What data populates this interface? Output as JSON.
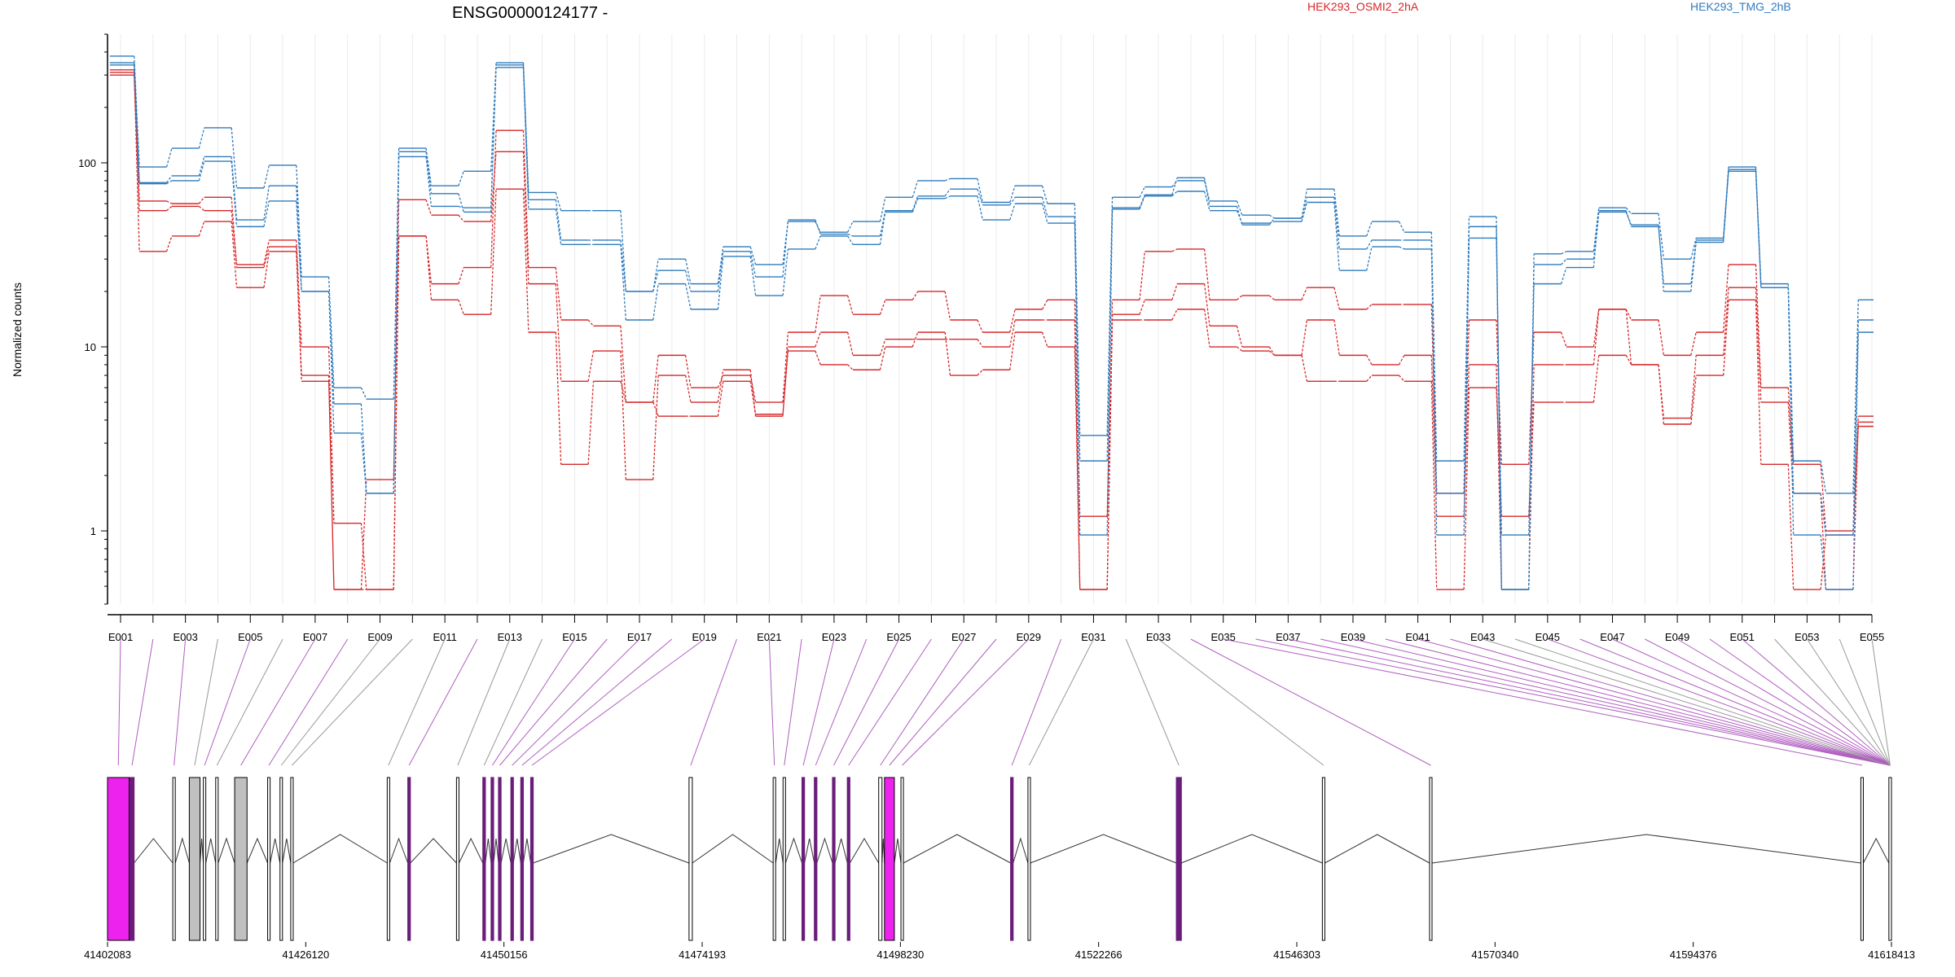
{
  "chart_data": {
    "type": "line",
    "title": "ENSG00000124177 -",
    "ylabel": "Normalized counts",
    "yscale": "log",
    "ylim": [
      0.4,
      500
    ],
    "yticks": [
      "1",
      "10",
      "100"
    ],
    "yticks_values": [
      1,
      10,
      100
    ],
    "grid": true,
    "legend": [
      "HEK293_OSMI2_2hA",
      "HEK293_TMG_2hB"
    ],
    "legend_placement": "top",
    "colors": {
      "OSMI2": "#d62728",
      "TMG": "#2f7bbd",
      "gene_model_exon": "#ee22ee",
      "gene_model_neutral": "#c0c0c0",
      "link_sig": "#b05ec0",
      "link_nonsig": "#999999"
    },
    "exons": [
      "E001",
      "E002",
      "E003",
      "E004",
      "E005",
      "E006",
      "E007",
      "E008",
      "E009",
      "E010",
      "E011",
      "E012",
      "E013",
      "E014",
      "E015",
      "E016",
      "E017",
      "E018",
      "E019",
      "E020",
      "E021",
      "E022",
      "E023",
      "E024",
      "E025",
      "E026",
      "E027",
      "E028",
      "E029",
      "E030",
      "E031",
      "E032",
      "E033",
      "E034",
      "E035",
      "E036",
      "E037",
      "E038",
      "E039",
      "E040",
      "E041",
      "E042",
      "E043",
      "E044",
      "E045",
      "E046",
      "E047",
      "E048",
      "E049",
      "E050",
      "E051",
      "E052",
      "E053",
      "E054",
      "E055"
    ],
    "xtick_labels": [
      "E001",
      "E003",
      "E005",
      "E007",
      "E009",
      "E011",
      "E013",
      "E015",
      "E017",
      "E019",
      "E021",
      "E023",
      "E025",
      "E027",
      "E029",
      "E031",
      "E033",
      "E035",
      "E037",
      "E039",
      "E041",
      "E043",
      "E045",
      "E047",
      "E049",
      "E051",
      "E053",
      "E055"
    ],
    "series": [
      {
        "name": "HEK293_OSMI2_2hA",
        "group": "OSMI2",
        "values": [
          320,
          55,
          58,
          55,
          28,
          38,
          10,
          1.1,
          0.48,
          40,
          22,
          27,
          150,
          27,
          14,
          13,
          5,
          9,
          6,
          7,
          5,
          12,
          19,
          15,
          18,
          20,
          14,
          12,
          16,
          18,
          1.2,
          18,
          33,
          34,
          18,
          19,
          18,
          21,
          16,
          17,
          17,
          1.6,
          14,
          2.3,
          12,
          10,
          16,
          14,
          9,
          12,
          28,
          6,
          2.3,
          1.0,
          4.2
        ]
      },
      {
        "name": "HEK293_OSMI2_2hA",
        "group": "OSMI2",
        "values": [
          300,
          62,
          60,
          65,
          27,
          35,
          6.5,
          0.48,
          1.9,
          63,
          52,
          48,
          115,
          22,
          6.5,
          9.5,
          1.9,
          7,
          5,
          7.5,
          4.2,
          10,
          12,
          9,
          11,
          11,
          11,
          10,
          14,
          14,
          0.48,
          15,
          18,
          22,
          13,
          10,
          9,
          14,
          9,
          8,
          9,
          1.2,
          8,
          0.48,
          8,
          8,
          16,
          8,
          4.1,
          9,
          21,
          5,
          1.6,
          0.48,
          3.9
        ]
      },
      {
        "name": "HEK293_OSMI2_2hA",
        "group": "OSMI2",
        "values": [
          310,
          33,
          40,
          48,
          21,
          33,
          7,
          0.48,
          0.48,
          40,
          18,
          15,
          72,
          12,
          2.3,
          6.5,
          5.0,
          4.2,
          4.2,
          6.5,
          4.3,
          9.5,
          8,
          7.5,
          10,
          12,
          7,
          7.5,
          12,
          10,
          0.48,
          14,
          14,
          16,
          10,
          9.5,
          9,
          6.5,
          6.5,
          7,
          6.5,
          0.48,
          6,
          1.2,
          5,
          5,
          9,
          8,
          3.8,
          7,
          18,
          2.3,
          0.48,
          0.95,
          3.7
        ]
      },
      {
        "name": "HEK293_TMG_2hB",
        "group": "TMG",
        "values": [
          380,
          95,
          120,
          155,
          73,
          97,
          24,
          6,
          5.2,
          120,
          75,
          90,
          350,
          69,
          55,
          55,
          20,
          30,
          22,
          35,
          28,
          48,
          42,
          48,
          65,
          80,
          82,
          61,
          75,
          60,
          3.3,
          65,
          74,
          80,
          62,
          52,
          50,
          72,
          40,
          48,
          42,
          2.4,
          51,
          0.48,
          32,
          33,
          57,
          53,
          30,
          39,
          95,
          22,
          2.4,
          1.6,
          18
        ]
      },
      {
        "name": "HEK293_TMG_2hB",
        "group": "TMG",
        "values": [
          350,
          78,
          85,
          108,
          49,
          75,
          20,
          4.9,
          1.6,
          115,
          68,
          54,
          340,
          63,
          38,
          38,
          20,
          26,
          20,
          33,
          24,
          49,
          41,
          40,
          55,
          66,
          72,
          59,
          65,
          51,
          2.4,
          57,
          67,
          83,
          58,
          46,
          50,
          65,
          34,
          38,
          38,
          1.6,
          45,
          0.48,
          28,
          30,
          55,
          45,
          22,
          38,
          92,
          21,
          1.6,
          0.95,
          14
        ]
      },
      {
        "name": "HEK293_TMG_2hB",
        "group": "TMG",
        "values": [
          340,
          77,
          80,
          102,
          45,
          62,
          20,
          3.4,
          1.6,
          108,
          58,
          57,
          330,
          56,
          36,
          36,
          14,
          22,
          16,
          31,
          19,
          34,
          40,
          36,
          54,
          64,
          66,
          49,
          60,
          47,
          0.95,
          56,
          66,
          70,
          55,
          47,
          48,
          61,
          26,
          35,
          34,
          0.95,
          39,
          0.95,
          22,
          27,
          54,
          46,
          20,
          37,
          90,
          21,
          0.95,
          0.48,
          12
        ]
      }
    ],
    "gene_model_ticks": [
      "41402083",
      "41426120",
      "41450156",
      "41474193",
      "41498230",
      "41522266",
      "41546303",
      "41570340",
      "41594376",
      "41618413"
    ],
    "gene_model_tick_values": [
      41402083,
      41426120,
      41450156,
      41474193,
      41498230,
      41522266,
      41546303,
      41570340,
      41594376,
      41618413
    ],
    "gene_model_exons": [
      {
        "start": 41402083,
        "end": 41404700,
        "kind": "sig-block"
      },
      {
        "start": 41404800,
        "end": 41405300,
        "kind": "sig"
      },
      {
        "start": 41410000,
        "end": 41410300,
        "kind": "plain"
      },
      {
        "start": 41412000,
        "end": 41413300,
        "kind": "neutral-block"
      },
      {
        "start": 41413700,
        "end": 41414000,
        "kind": "plain"
      },
      {
        "start": 41415200,
        "end": 41415500,
        "kind": "plain"
      },
      {
        "start": 41417500,
        "end": 41419000,
        "kind": "neutral-block"
      },
      {
        "start": 41421500,
        "end": 41421800,
        "kind": "plain"
      },
      {
        "start": 41423000,
        "end": 41423300,
        "kind": "plain"
      },
      {
        "start": 41424300,
        "end": 41424600,
        "kind": "plain"
      },
      {
        "start": 41436000,
        "end": 41436300,
        "kind": "plain"
      },
      {
        "start": 41438500,
        "end": 41438800,
        "kind": "sig"
      },
      {
        "start": 41444400,
        "end": 41444700,
        "kind": "plain"
      },
      {
        "start": 41447600,
        "end": 41447900,
        "kind": "sig"
      },
      {
        "start": 41448600,
        "end": 41448900,
        "kind": "sig"
      },
      {
        "start": 41449500,
        "end": 41449800,
        "kind": "sig"
      },
      {
        "start": 41451000,
        "end": 41451300,
        "kind": "sig"
      },
      {
        "start": 41452200,
        "end": 41452500,
        "kind": "sig"
      },
      {
        "start": 41453400,
        "end": 41453700,
        "kind": "sig"
      },
      {
        "start": 41472600,
        "end": 41473000,
        "kind": "plain"
      },
      {
        "start": 41482800,
        "end": 41483100,
        "kind": "plain"
      },
      {
        "start": 41484000,
        "end": 41484300,
        "kind": "plain"
      },
      {
        "start": 41486300,
        "end": 41486600,
        "kind": "sig"
      },
      {
        "start": 41487800,
        "end": 41488100,
        "kind": "sig"
      },
      {
        "start": 41490000,
        "end": 41490300,
        "kind": "sig"
      },
      {
        "start": 41491800,
        "end": 41492100,
        "kind": "sig"
      },
      {
        "start": 41495600,
        "end": 41496000,
        "kind": "plain"
      },
      {
        "start": 41496300,
        "end": 41497500,
        "kind": "sig-block"
      },
      {
        "start": 41498300,
        "end": 41498600,
        "kind": "plain"
      },
      {
        "start": 41511600,
        "end": 41511900,
        "kind": "sig"
      },
      {
        "start": 41513700,
        "end": 41514000,
        "kind": "plain"
      },
      {
        "start": 41531700,
        "end": 41532300,
        "kind": "sig"
      },
      {
        "start": 41549400,
        "end": 41549700,
        "kind": "plain"
      },
      {
        "start": 41562400,
        "end": 41562700,
        "kind": "plain"
      },
      {
        "start": 41614700,
        "end": 41615000,
        "kind": "plain"
      },
      {
        "start": 41618100,
        "end": 41618413,
        "kind": "plain"
      }
    ],
    "link_sig_exons": [
      "E001",
      "E002",
      "E003",
      "E005",
      "E007",
      "E008",
      "E012",
      "E015",
      "E016",
      "E017",
      "E018",
      "E019",
      "E020",
      "E021",
      "E022",
      "E023",
      "E024",
      "E025",
      "E026",
      "E027",
      "E028",
      "E029",
      "E030",
      "E034",
      "E035",
      "E036",
      "E037",
      "E038",
      "E039",
      "E040",
      "E041",
      "E042",
      "E045",
      "E046",
      "E047",
      "E048",
      "E049",
      "E050",
      "E051"
    ]
  }
}
